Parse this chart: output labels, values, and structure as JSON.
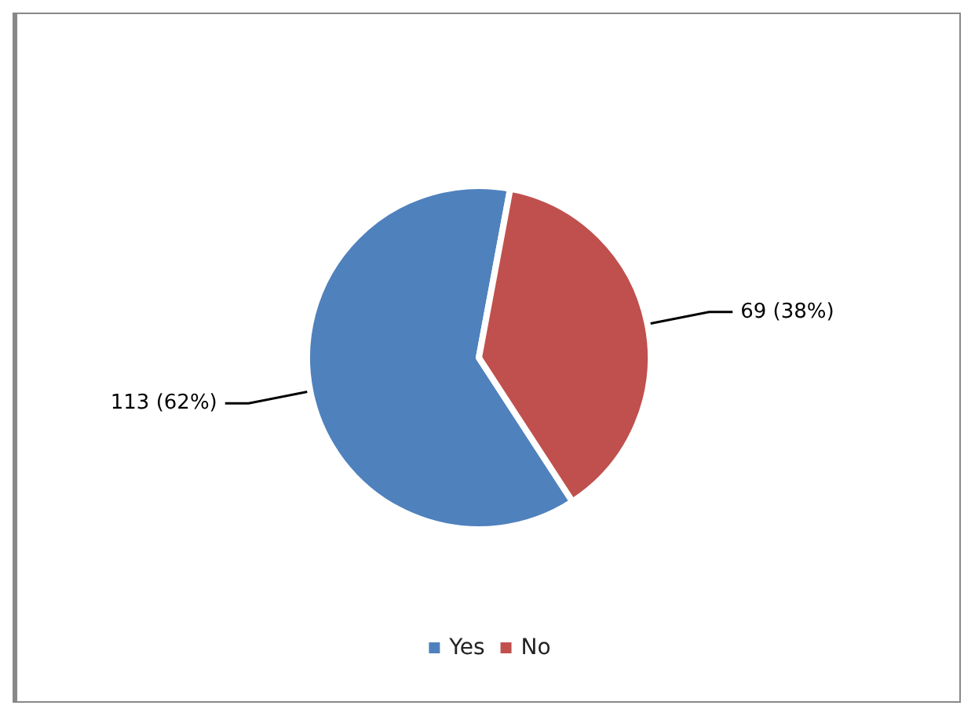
{
  "chart_data": {
    "type": "pie",
    "categories": [
      "Yes",
      "No"
    ],
    "values": [
      113,
      69
    ],
    "value_labels": [
      "113 (62%)",
      "69 (38%)"
    ],
    "colors": [
      "#4f81bd",
      "#c0504d"
    ],
    "legend": "bottom"
  }
}
